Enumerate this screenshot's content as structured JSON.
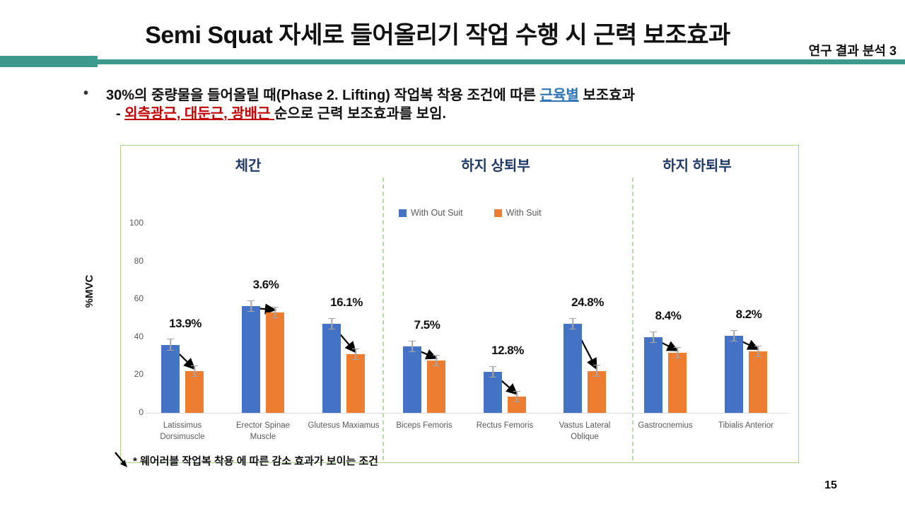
{
  "header": {
    "title": "Semi Squat 자세로 들어올리기 작업 수행 시 근력 보조효과",
    "badge": "연구 결과 분석 3"
  },
  "accent_color": "#3D998B",
  "bullet": {
    "marker": "•",
    "line1_pre": "30%의 중량물을 들어올릴 때(Phase 2. Lifting) 작업복 착용 조건에 따른 ",
    "line1_highlight": "근육별",
    "line1_post": " 보조효과",
    "line2_dash": "- ",
    "line2_highlight": "외측광근, 대둔근, 광배근 ",
    "line2_post": "순으로 근력 보조효과를 보임.",
    "highlight_blue": "#2E74B5",
    "highlight_red": "#C00000"
  },
  "chart_data": {
    "type": "bar",
    "title": "",
    "xlabel": "",
    "ylabel": "%MVC",
    "ylim": [
      0,
      100
    ],
    "yticks": [
      0,
      20,
      40,
      60,
      80,
      100
    ],
    "grid": false,
    "legend_position": "top-center",
    "sections": [
      {
        "label": "체간",
        "category_span": [
          0,
          2
        ]
      },
      {
        "label": "하지 상퇴부",
        "category_span": [
          3,
          5
        ]
      },
      {
        "label": "하지 하퇴부",
        "category_span": [
          6,
          7
        ]
      }
    ],
    "legend": [
      {
        "name": "With Out Suit",
        "color": "#4472C4"
      },
      {
        "name": "With Suit",
        "color": "#ED7D31"
      }
    ],
    "categories": [
      "Latissimus Dorsimuscle",
      "Erector Spinae Muscle",
      "Glutesus Maxiamus",
      "Biceps Femoris",
      "Rectus Femoris",
      "Vastus Lateral Oblique",
      "Gastrocnemius",
      "Tibialis Anterior"
    ],
    "series": [
      {
        "name": "With Out Suit",
        "values": [
          36,
          56.5,
          47,
          35,
          21.5,
          47,
          40,
          40.5
        ]
      },
      {
        "name": "With Suit",
        "values": [
          22.1,
          52.9,
          30.9,
          27.5,
          8.7,
          22.2,
          31.6,
          32.3
        ]
      }
    ],
    "error_pct": 3,
    "reduction_labels": [
      "13.9%",
      "3.6%",
      "16.1%",
      "7.5%",
      "12.8%",
      "24.8%",
      "8.4%",
      "8.2%"
    ]
  },
  "footnote": "* 웨어러블 작업복 착용 에 따른 감소 효과가 보이는 조건",
  "page_number": "15"
}
